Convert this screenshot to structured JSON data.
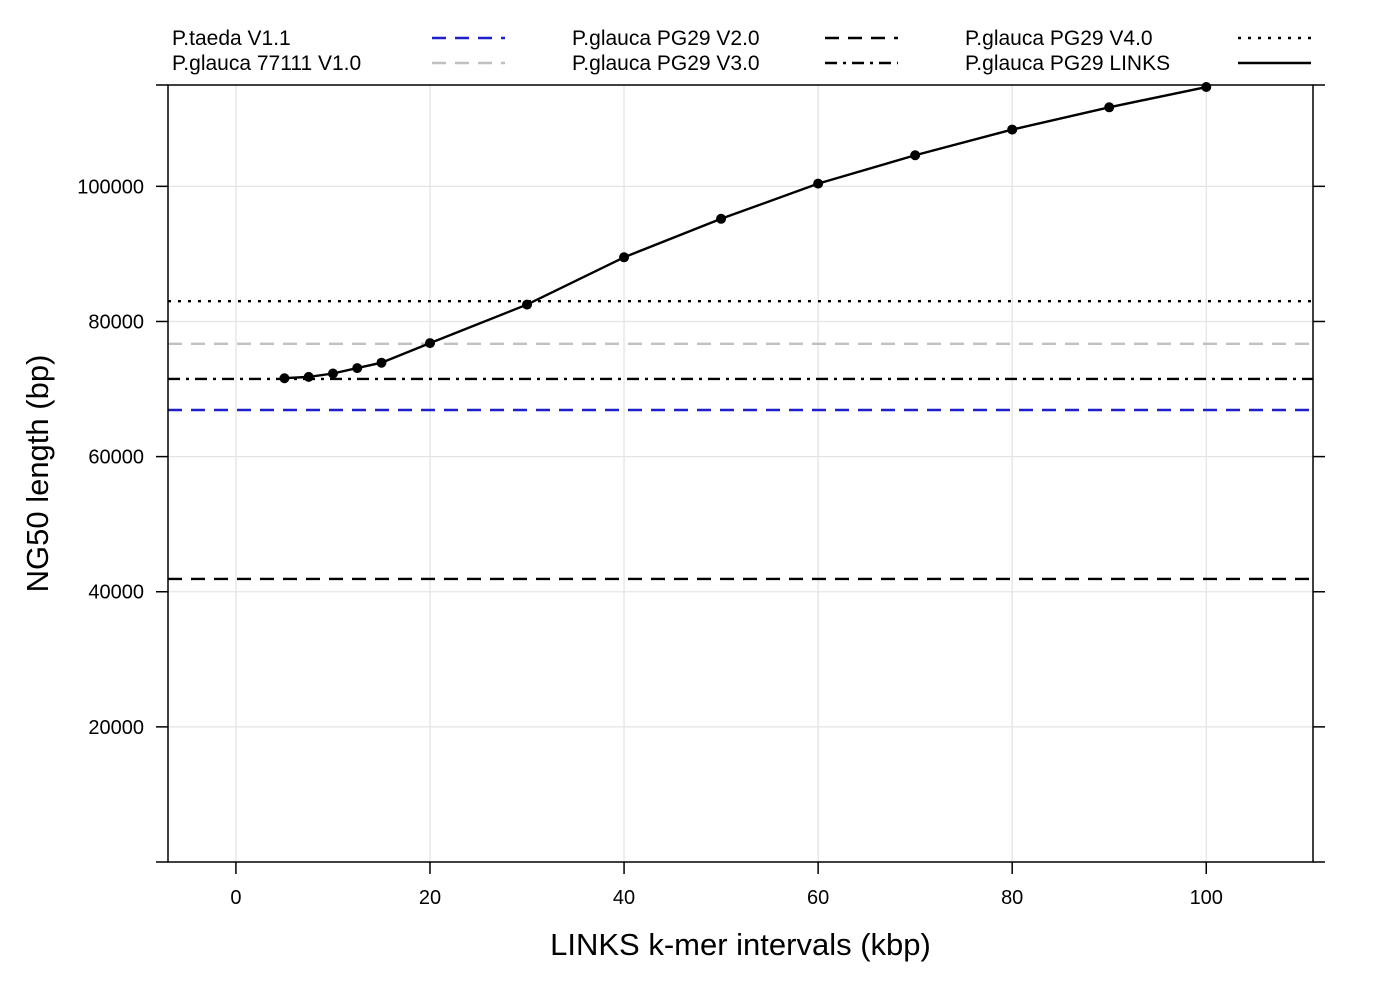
{
  "chart_data": {
    "type": "line",
    "title": "",
    "xlabel": "LINKS k-mer intervals (kbp)",
    "ylabel": "NG50 length (bp)",
    "xlim": [
      -7,
      111
    ],
    "ylim": [
      0,
      115000
    ],
    "xticks": [
      0,
      20,
      40,
      60,
      80,
      100
    ],
    "yticks": [
      20000,
      40000,
      60000,
      80000,
      100000
    ],
    "grid": true,
    "legend_position": "top",
    "series": [
      {
        "name": "P.taeda V1.1",
        "kind": "hline",
        "y": 66900,
        "color": "#1f1fcc",
        "dash": "dashed"
      },
      {
        "name": "P.glauca 77111 V1.0",
        "kind": "hline",
        "y": 76700,
        "color": "#c0c0c0",
        "dash": "dashed"
      },
      {
        "name": "P.glauca PG29 V2.0",
        "kind": "hline",
        "y": 41900,
        "color": "#000000",
        "dash": "dashed"
      },
      {
        "name": "P.glauca PG29 V3.0",
        "kind": "hline",
        "y": 71500,
        "color": "#000000",
        "dash": "dashdot"
      },
      {
        "name": "P.glauca PG29 V4.0",
        "kind": "hline",
        "y": 83000,
        "color": "#000000",
        "dash": "dotted"
      },
      {
        "name": "P.glauca PG29 LINKS",
        "kind": "line",
        "color": "#000000",
        "dash": "solid",
        "x": [
          5,
          7.5,
          10,
          12.5,
          15,
          20,
          30,
          40,
          50,
          60,
          70,
          80,
          90,
          100
        ],
        "y": [
          71600,
          71800,
          72300,
          73100,
          73900,
          76800,
          82500,
          89500,
          95200,
          100400,
          104600,
          108400,
          111700,
          114700
        ]
      }
    ]
  }
}
